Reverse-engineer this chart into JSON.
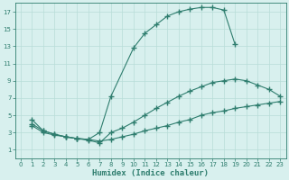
{
  "line1_x": [
    1,
    2,
    3,
    4,
    5,
    6,
    7,
    8,
    10,
    11,
    12,
    13,
    14,
    15,
    16,
    17,
    18,
    19
  ],
  "line1_y": [
    4.5,
    3.2,
    2.8,
    2.5,
    2.3,
    2.2,
    3.0,
    7.2,
    12.8,
    14.5,
    15.5,
    16.5,
    17.0,
    17.3,
    17.5,
    17.5,
    17.2,
    13.2
  ],
  "line2_x": [
    1,
    2,
    3,
    4,
    5,
    6,
    7,
    8,
    9,
    10,
    11,
    12,
    13,
    14,
    15,
    16,
    17,
    18,
    19,
    20,
    21,
    22,
    23
  ],
  "line2_y": [
    4.0,
    3.2,
    2.8,
    2.5,
    2.3,
    2.1,
    1.8,
    3.0,
    3.5,
    4.2,
    5.0,
    5.8,
    6.5,
    7.2,
    7.8,
    8.3,
    8.8,
    9.0,
    9.2,
    9.0,
    8.5,
    8.0,
    7.2
  ],
  "line3_x": [
    1,
    2,
    3,
    4,
    5,
    6,
    7,
    8,
    9,
    10,
    11,
    12,
    13,
    14,
    15,
    16,
    17,
    18,
    19,
    20,
    21,
    22,
    23
  ],
  "line3_y": [
    3.8,
    3.0,
    2.7,
    2.5,
    2.3,
    2.2,
    2.0,
    2.2,
    2.5,
    2.8,
    3.2,
    3.5,
    3.8,
    4.2,
    4.5,
    5.0,
    5.3,
    5.5,
    5.8,
    6.0,
    6.2,
    6.4,
    6.6
  ],
  "line_color": "#2e7d6e",
  "bg_color": "#d8f0ee",
  "grid_color": "#b8ddd8",
  "grid_minor_color": "#cce8e4",
  "xlabel": "Humidex (Indice chaleur)",
  "xlim": [
    -0.5,
    23.5
  ],
  "ylim": [
    0,
    18
  ],
  "xticks": [
    0,
    1,
    2,
    3,
    4,
    5,
    6,
    7,
    8,
    9,
    10,
    11,
    12,
    13,
    14,
    15,
    16,
    17,
    18,
    19,
    20,
    21,
    22,
    23
  ],
  "yticks": [
    1,
    3,
    5,
    7,
    9,
    11,
    13,
    15,
    17
  ],
  "tick_fontsize": 5.0,
  "xlabel_fontsize": 6.5,
  "marker": "+",
  "markersize": 4.0,
  "linewidth": 0.8
}
